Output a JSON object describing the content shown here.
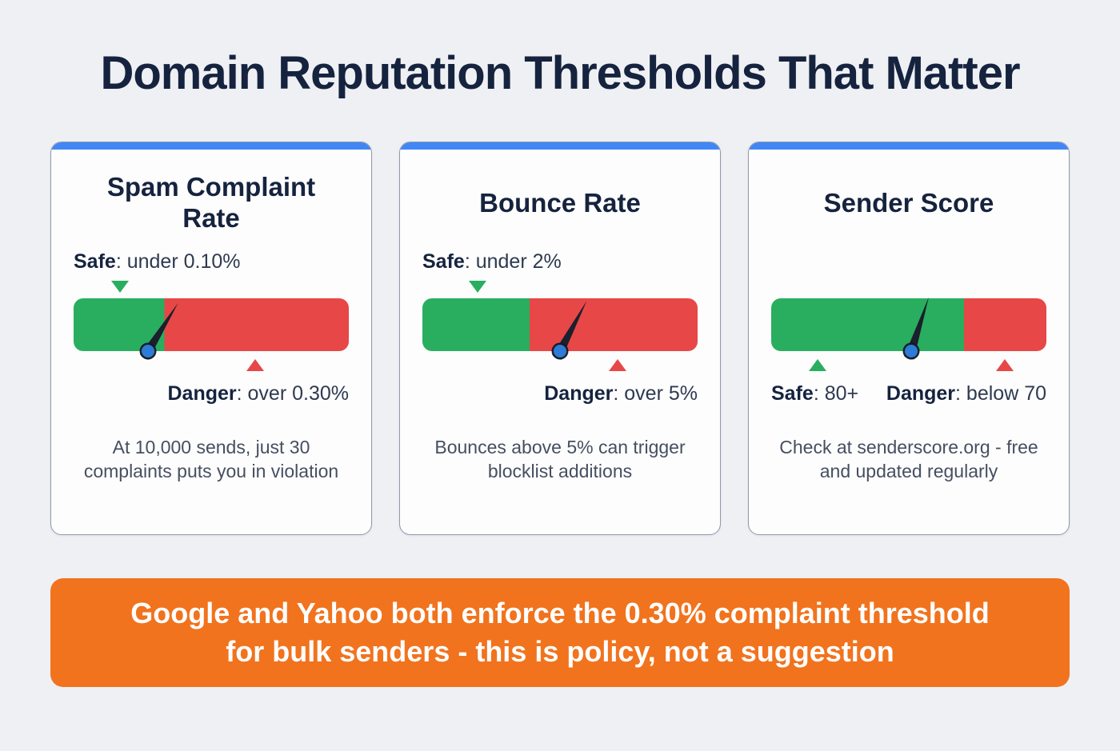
{
  "page": {
    "title": "Domain Reputation Thresholds That Matter"
  },
  "colors": {
    "background": "#eef0f4",
    "navy": "#16233f",
    "card_border": "#8f9aa9",
    "accent_blue": "#4285f4",
    "green": "#29ad5f",
    "red": "#e84747",
    "orange": "#f2731d",
    "needle": "#1a202c",
    "pivot_blue": "#2e7bd6"
  },
  "cards": [
    {
      "title": "Spam Complaint Rate",
      "safe": {
        "label": "Safe",
        "value": ": under 0.10%"
      },
      "danger": {
        "label": "Danger",
        "value": ": over 0.30%"
      },
      "note": "At 10,000 sends, just 30 complaints puts you in violation",
      "gauge": {
        "green_pct": 33,
        "needle_pct": 27,
        "needle_angle_deg": 32,
        "safe_marker_pct": 17,
        "danger_marker_pct": 66
      }
    },
    {
      "title": "Bounce Rate",
      "safe": {
        "label": "Safe",
        "value": ": under 2%"
      },
      "danger": {
        "label": "Danger",
        "value": ": over 5%"
      },
      "note": "Bounces above 5% can trigger blocklist additions",
      "gauge": {
        "green_pct": 39,
        "needle_pct": 50,
        "needle_angle_deg": 28,
        "safe_marker_pct": 20,
        "danger_marker_pct": 71
      }
    },
    {
      "title": "Sender Score",
      "safe": {
        "label": "Safe",
        "value": ": 80+"
      },
      "danger": {
        "label": "Danger",
        "value": ": below 70"
      },
      "note": "Check at senderscore.org - free and updated regularly",
      "gauge": {
        "green_pct": 70,
        "needle_pct": 51,
        "needle_angle_deg": 18,
        "safe_marker_pct": 17,
        "danger_marker_pct": 85
      }
    }
  ],
  "banner": {
    "line1": "Google and Yahoo both enforce the 0.30% complaint threshold",
    "line2": "for bulk senders - this is policy, not a suggestion"
  }
}
